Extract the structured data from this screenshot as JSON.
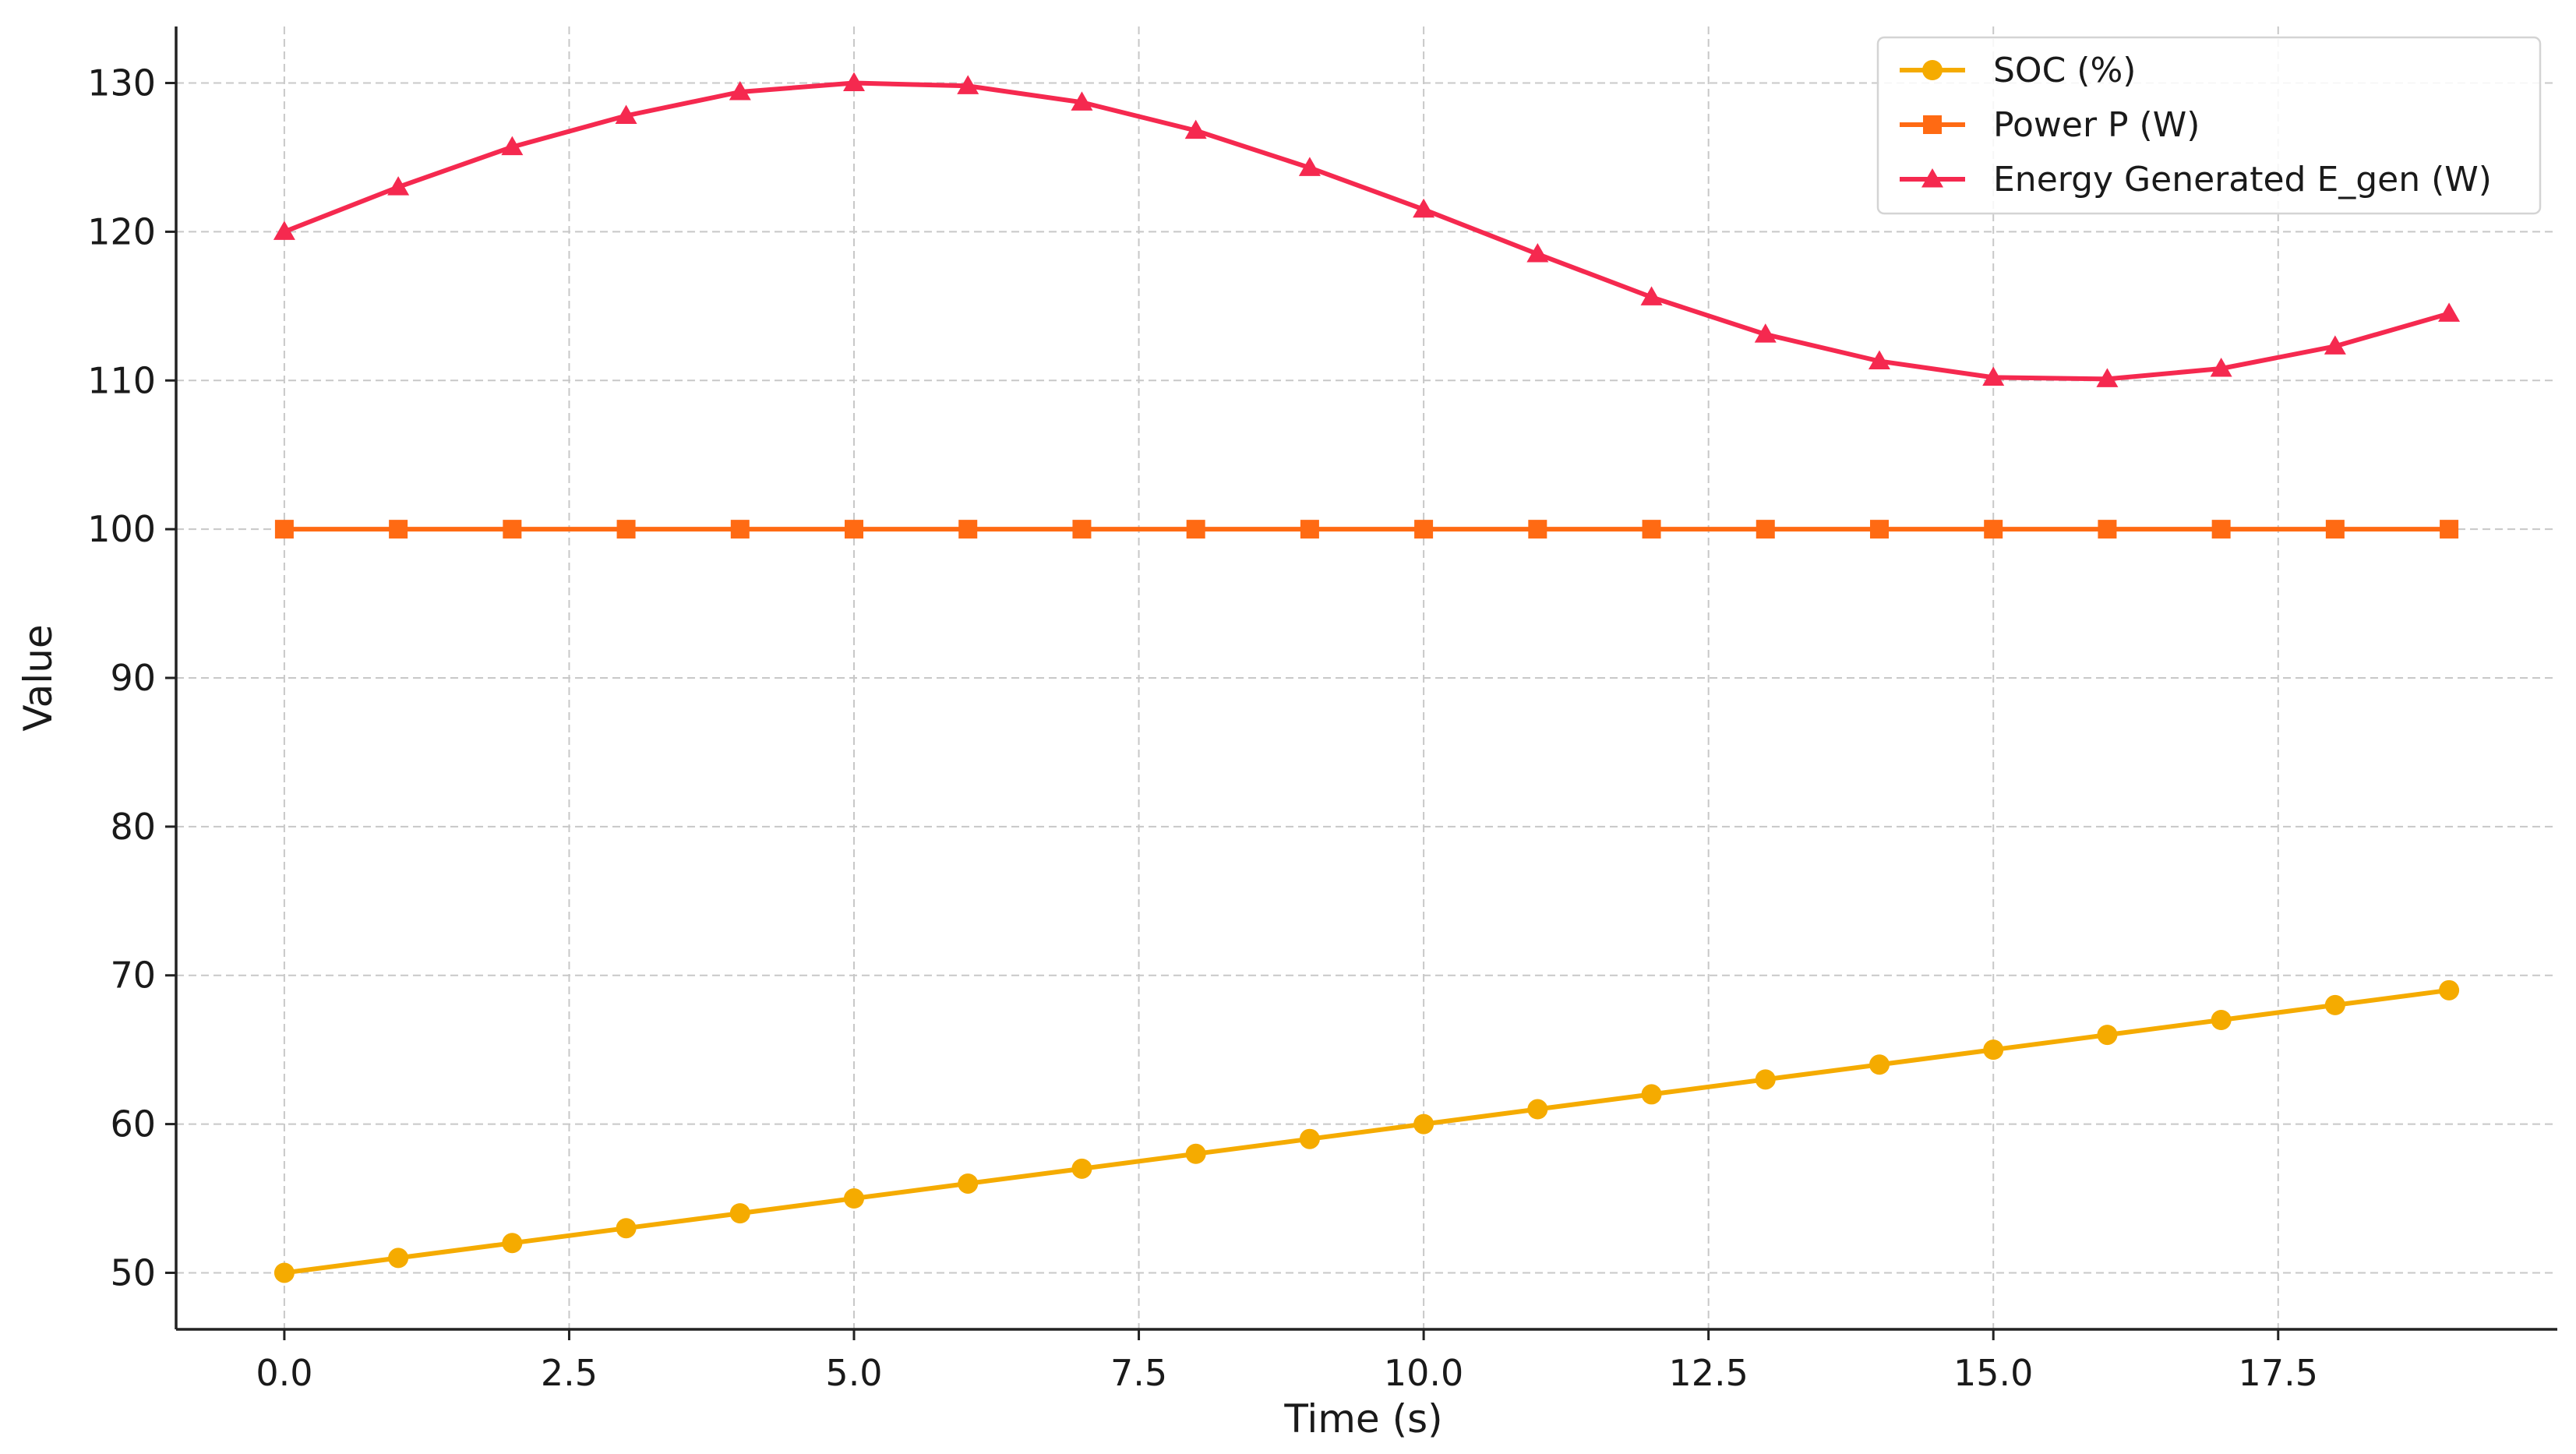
{
  "chart_data": {
    "type": "line",
    "title": "",
    "xlabel": "Time (s)",
    "ylabel": "Value",
    "xlim": [
      -0.95,
      19.95
    ],
    "ylim": [
      46.2,
      133.8
    ],
    "xticks": [
      0.0,
      2.5,
      5.0,
      7.5,
      10.0,
      12.5,
      15.0,
      17.5
    ],
    "xtick_labels": [
      "0.0",
      "2.5",
      "5.0",
      "7.5",
      "10.0",
      "12.5",
      "15.0",
      "17.5"
    ],
    "yticks": [
      50,
      60,
      70,
      80,
      90,
      100,
      110,
      120,
      130
    ],
    "ytick_labels": [
      "50",
      "60",
      "70",
      "80",
      "90",
      "100",
      "110",
      "120",
      "130"
    ],
    "grid": true,
    "legend_position": "top-right",
    "x": [
      0,
      1,
      2,
      3,
      4,
      5,
      6,
      7,
      8,
      9,
      10,
      11,
      12,
      13,
      14,
      15,
      16,
      17,
      18,
      19
    ],
    "series": [
      {
        "name": "SOC (%)",
        "color": "#F5AB00",
        "marker": "circle",
        "values": [
          50,
          51,
          52,
          53,
          54,
          55,
          56,
          57,
          58,
          59,
          60,
          61,
          62,
          63,
          64,
          65,
          66,
          67,
          68,
          69
        ]
      },
      {
        "name": "Power P (W)",
        "color": "#FF6A13",
        "marker": "square",
        "values": [
          100,
          100,
          100,
          100,
          100,
          100,
          100,
          100,
          100,
          100,
          100,
          100,
          100,
          100,
          100,
          100,
          100,
          100,
          100,
          100
        ]
      },
      {
        "name": "Energy Generated E_gen (W)",
        "color": "#F5294F",
        "marker": "triangle",
        "values": [
          120.0,
          123.0,
          125.7,
          127.8,
          129.4,
          130.0,
          129.8,
          128.7,
          126.8,
          124.3,
          121.5,
          118.5,
          115.6,
          113.1,
          111.3,
          110.2,
          110.1,
          110.8,
          112.3,
          114.5
        ]
      }
    ]
  }
}
